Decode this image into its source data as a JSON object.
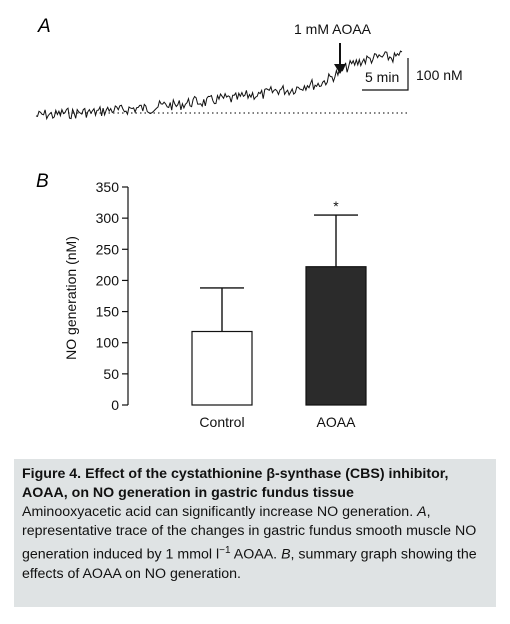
{
  "panel_a": {
    "letter": "A",
    "arrow_label": "1 mM AOAA",
    "scale_time": "5 min",
    "scale_conc": "100 nM"
  },
  "panel_b": {
    "letter": "B"
  },
  "chart_data": [
    {
      "type": "line",
      "panel": "A",
      "title": "",
      "description_visible": "representative trace of NO generation rising after AOAA addition",
      "annotations": [
        "1 mM AOAA",
        "5 min",
        "100 nM"
      ],
      "baseline": "dotted",
      "series": [
        {
          "values": [
            0,
            2,
            1,
            4,
            3,
            5,
            4,
            6,
            8,
            7,
            9,
            10,
            9,
            12,
            14,
            13,
            16,
            18,
            17,
            20,
            22,
            21,
            24,
            27,
            26,
            30,
            33,
            32,
            36,
            40,
            39,
            45,
            52,
            60,
            66,
            70,
            72,
            74,
            73,
            75
          ]
        }
      ]
    },
    {
      "type": "bar",
      "panel": "B",
      "title": "",
      "categories": [
        "Control",
        "AOAA"
      ],
      "values": [
        118,
        222
      ],
      "error_upper": [
        188,
        305
      ],
      "significance": [
        "",
        "*"
      ],
      "fills": [
        "#ffffff",
        "#2b2b2b"
      ],
      "xlabel": "",
      "ylabel": "NO generation (nM)",
      "ylim": [
        0,
        350
      ],
      "yticks": [
        "0",
        "50",
        "100",
        "150",
        "200",
        "250",
        "300",
        "350"
      ]
    }
  ],
  "caption": {
    "heading": "Figure 4.  Effect of the cystathionine β-synthase (CBS) inhibitor, AOAA, on NO generation in gastric fundus tissue",
    "line1": "Aminooxyacetic acid can significantly increase NO generation.",
    "a_letter": "A",
    "a_text": ", representative trace of the changes in gastric fundus smooth muscle NO generation induced by 1 mmol l",
    "a_sup": "−1",
    "a_end": " AOAA.",
    "b_letter": "B",
    "b_text": ", summary graph showing the effects of AOAA on NO generation."
  }
}
